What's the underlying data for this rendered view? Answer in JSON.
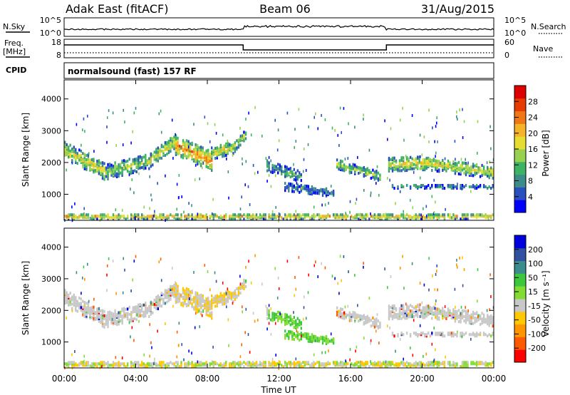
{
  "header": {
    "station": "Adak East (fitACF)",
    "beam": "Beam 06",
    "date": "31/Aug/2015"
  },
  "top_panels": {
    "nsky_label": "N.Sky",
    "nsearch_label": "N.Search",
    "count_ticks": [
      "10^5",
      "10^0"
    ],
    "freq_label": "Freq.",
    "freq_unit": "[MHz]",
    "freq_ticks": [
      "18",
      "8"
    ],
    "nave_label": "Nave",
    "nave_ticks": [
      "60",
      "0"
    ],
    "cpid_label": "CPID",
    "cpid_text": "normalsound (fast) 157 RF"
  },
  "chart_data": {
    "type": "heatmap",
    "xlabel": "Time UT",
    "x_ticks": [
      "00:00",
      "04:00",
      "08:00",
      "12:00",
      "16:00",
      "20:00",
      "00:00"
    ],
    "xlim_hours": [
      0,
      24
    ],
    "ylim_km": [
      180,
      4600
    ],
    "y_ticks": [
      "1000",
      "2000",
      "3000",
      "4000"
    ],
    "ylabel": "Slant Range [km]",
    "freq_steps": [
      {
        "from": 0,
        "to": 10,
        "value": "high"
      },
      {
        "from": 10,
        "to": 18,
        "value": "low"
      },
      {
        "from": 18,
        "to": 24,
        "value": "high"
      }
    ],
    "panels": [
      {
        "name": "power",
        "colorbar_label": "Power [dB]",
        "colorbar_ticks": [
          "28",
          "24",
          "20",
          "16",
          "12",
          "8",
          "4"
        ],
        "colors": [
          "#0000ff",
          "#2a50c0",
          "#3c8c8c",
          "#3cb464",
          "#96d250",
          "#e6dc32",
          "#f5b428",
          "#f07814",
          "#e63c00",
          "#dc0000"
        ]
      },
      {
        "name": "velocity",
        "colorbar_label": "Velocity [m s⁻¹]",
        "colorbar_ticks": [
          "200",
          "100",
          "50",
          "15",
          "-15",
          "-50",
          "-100",
          "-200"
        ],
        "colors": [
          "#ff0000",
          "#ff5a00",
          "#ff9600",
          "#ffc800",
          "#c8c8c8",
          "#82dc32",
          "#3cc83c",
          "#3c8c8c",
          "#3050a0",
          "#0000dc"
        ]
      }
    ]
  }
}
